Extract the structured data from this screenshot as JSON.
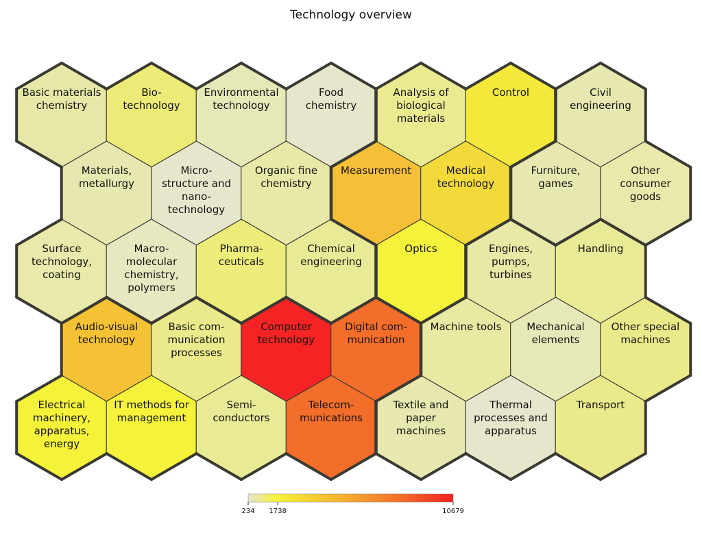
{
  "chart_data": {
    "type": "heatmap",
    "title": "Technology overview",
    "colorscale": {
      "min": 234,
      "max": 10679,
      "ticks": [
        234,
        1738,
        10679
      ],
      "stops": [
        {
          "value": 234,
          "color": "#e6e6cc"
        },
        {
          "value": 1738,
          "color": "#f6f23a"
        },
        {
          "value": 5000,
          "color": "#f5b32f"
        },
        {
          "value": 8000,
          "color": "#f36d2a"
        },
        {
          "value": 10679,
          "color": "#f52020"
        }
      ]
    },
    "cells": [
      {
        "label": "Basic materials chemistry",
        "lines": [
          "Basic materials",
          "chemistry"
        ],
        "row": 0,
        "col": 0,
        "value": 900,
        "color": "#e7e8a7"
      },
      {
        "label": "Bio-technology",
        "lines": [
          "Bio-",
          "technology"
        ],
        "row": 0,
        "col": 1,
        "value": 1300,
        "color": "#eceb78"
      },
      {
        "label": "Environmental technology",
        "lines": [
          "Environmental",
          "technology"
        ],
        "row": 0,
        "col": 2,
        "value": 600,
        "color": "#e7e8b8"
      },
      {
        "label": "Food chemistry",
        "lines": [
          "Food",
          "chemistry"
        ],
        "row": 0,
        "col": 3,
        "value": 350,
        "color": "#e6e6cc"
      },
      {
        "label": "Analysis of biological materials",
        "lines": [
          "Analysis of",
          "biological",
          "materials"
        ],
        "row": 0,
        "col": 4,
        "value": 1100,
        "color": "#eaea90"
      },
      {
        "label": "Control",
        "lines": [
          "Control"
        ],
        "row": 0,
        "col": 5,
        "value": 2200,
        "color": "#f4e83a"
      },
      {
        "label": "Civil engineering",
        "lines": [
          "Civil",
          "engineering"
        ],
        "row": 0,
        "col": 6,
        "value": 700,
        "color": "#e7e8b0"
      },
      {
        "label": "Materials, metallurgy",
        "lines": [
          "Materials,",
          "metallurgy"
        ],
        "row": 1,
        "col": 0,
        "value": 700,
        "color": "#e7e8b0"
      },
      {
        "label": "Micro-structure and nano-technology",
        "lines": [
          "Micro-",
          "structure and",
          "nano-",
          "technology"
        ],
        "row": 1,
        "col": 1,
        "value": 280,
        "color": "#e6e6cc"
      },
      {
        "label": "Organic fine chemistry",
        "lines": [
          "Organic fine",
          "chemistry"
        ],
        "row": 1,
        "col": 2,
        "value": 900,
        "color": "#e8e9a6"
      },
      {
        "label": "Measurement",
        "lines": [
          "Measurement"
        ],
        "row": 1,
        "col": 3,
        "value": 4800,
        "color": "#f5c038"
      },
      {
        "label": "Medical technology",
        "lines": [
          "Medical",
          "technology"
        ],
        "row": 1,
        "col": 4,
        "value": 3000,
        "color": "#f3da3a"
      },
      {
        "label": "Furniture, games",
        "lines": [
          "Furniture,",
          "games"
        ],
        "row": 1,
        "col": 5,
        "value": 700,
        "color": "#e7e8b0"
      },
      {
        "label": "Other consumer goods",
        "lines": [
          "Other",
          "consumer",
          "goods"
        ],
        "row": 1,
        "col": 6,
        "value": 750,
        "color": "#e8e9aa"
      },
      {
        "label": "Surface technology, coating",
        "lines": [
          "Surface",
          "technology,",
          "coating"
        ],
        "row": 2,
        "col": 0,
        "value": 750,
        "color": "#e8e9aa"
      },
      {
        "label": "Macro-molecular chemistry, polymers",
        "lines": [
          "Macro-",
          "molecular",
          "chemistry,",
          "polymers"
        ],
        "row": 2,
        "col": 1,
        "value": 500,
        "color": "#e7e8c0"
      },
      {
        "label": "Pharma-ceuticals",
        "lines": [
          "Pharma-",
          "ceuticals"
        ],
        "row": 2,
        "col": 2,
        "value": 1200,
        "color": "#ecec7a"
      },
      {
        "label": "Chemical engineering",
        "lines": [
          "Chemical",
          "engineering"
        ],
        "row": 2,
        "col": 3,
        "value": 1000,
        "color": "#e9ea96"
      },
      {
        "label": "Optics",
        "lines": [
          "Optics"
        ],
        "row": 2,
        "col": 4,
        "value": 1750,
        "color": "#f4f23a"
      },
      {
        "label": "Engines, pumps, turbines",
        "lines": [
          "Engines,",
          "pumps,",
          "turbines"
        ],
        "row": 2,
        "col": 5,
        "value": 800,
        "color": "#e8e9a6"
      },
      {
        "label": "Handling",
        "lines": [
          "Handling"
        ],
        "row": 2,
        "col": 6,
        "value": 1000,
        "color": "#e9ea96"
      },
      {
        "label": "Audio-visual technology",
        "lines": [
          "Audio-visual",
          "technology"
        ],
        "row": 3,
        "col": 0,
        "value": 4600,
        "color": "#f5c235"
      },
      {
        "label": "Basic communication processes",
        "lines": [
          "Basic com-",
          "munication",
          "processes"
        ],
        "row": 3,
        "col": 1,
        "value": 1050,
        "color": "#eaea8c"
      },
      {
        "label": "Computer technology",
        "lines": [
          "Computer",
          "technology"
        ],
        "row": 3,
        "col": 2,
        "value": 10679,
        "color": "#f52424"
      },
      {
        "label": "Digital communication",
        "lines": [
          "Digital com-",
          "munication"
        ],
        "row": 3,
        "col": 3,
        "value": 8500,
        "color": "#f36e2a"
      },
      {
        "label": "Machine tools",
        "lines": [
          "Machine tools"
        ],
        "row": 3,
        "col": 4,
        "value": 900,
        "color": "#e8e9a2"
      },
      {
        "label": "Mechanical elements",
        "lines": [
          "Mechanical",
          "elements"
        ],
        "row": 3,
        "col": 5,
        "value": 650,
        "color": "#e7e8b8"
      },
      {
        "label": "Other special machines",
        "lines": [
          "Other special",
          "machines"
        ],
        "row": 3,
        "col": 6,
        "value": 1050,
        "color": "#eaea8a"
      },
      {
        "label": "Electrical machinery, apparatus, energy",
        "lines": [
          "Electrical",
          "machinery,",
          "apparatus,",
          "energy"
        ],
        "row": 4,
        "col": 0,
        "value": 1800,
        "color": "#f5f23a"
      },
      {
        "label": "IT methods for management",
        "lines": [
          "IT methods for",
          "management"
        ],
        "row": 4,
        "col": 1,
        "value": 1750,
        "color": "#f4f23a"
      },
      {
        "label": "Semi-conductors",
        "lines": [
          "Semi-",
          "conductors"
        ],
        "row": 4,
        "col": 2,
        "value": 1000,
        "color": "#e9ea96"
      },
      {
        "label": "Telecom-munications",
        "lines": [
          "Telecom-",
          "munications"
        ],
        "row": 4,
        "col": 3,
        "value": 8300,
        "color": "#f36e2a"
      },
      {
        "label": "Textile and paper machines",
        "lines": [
          "Textile and",
          "paper",
          "machines"
        ],
        "row": 4,
        "col": 4,
        "value": 700,
        "color": "#e7e8b0"
      },
      {
        "label": "Thermal processes and apparatus",
        "lines": [
          "Thermal",
          "processes and",
          "apparatus"
        ],
        "row": 4,
        "col": 5,
        "value": 380,
        "color": "#e6e6cc"
      },
      {
        "label": "Transport",
        "lines": [
          "Transport"
        ],
        "row": 4,
        "col": 6,
        "value": 1050,
        "color": "#eaea8c"
      }
    ]
  }
}
